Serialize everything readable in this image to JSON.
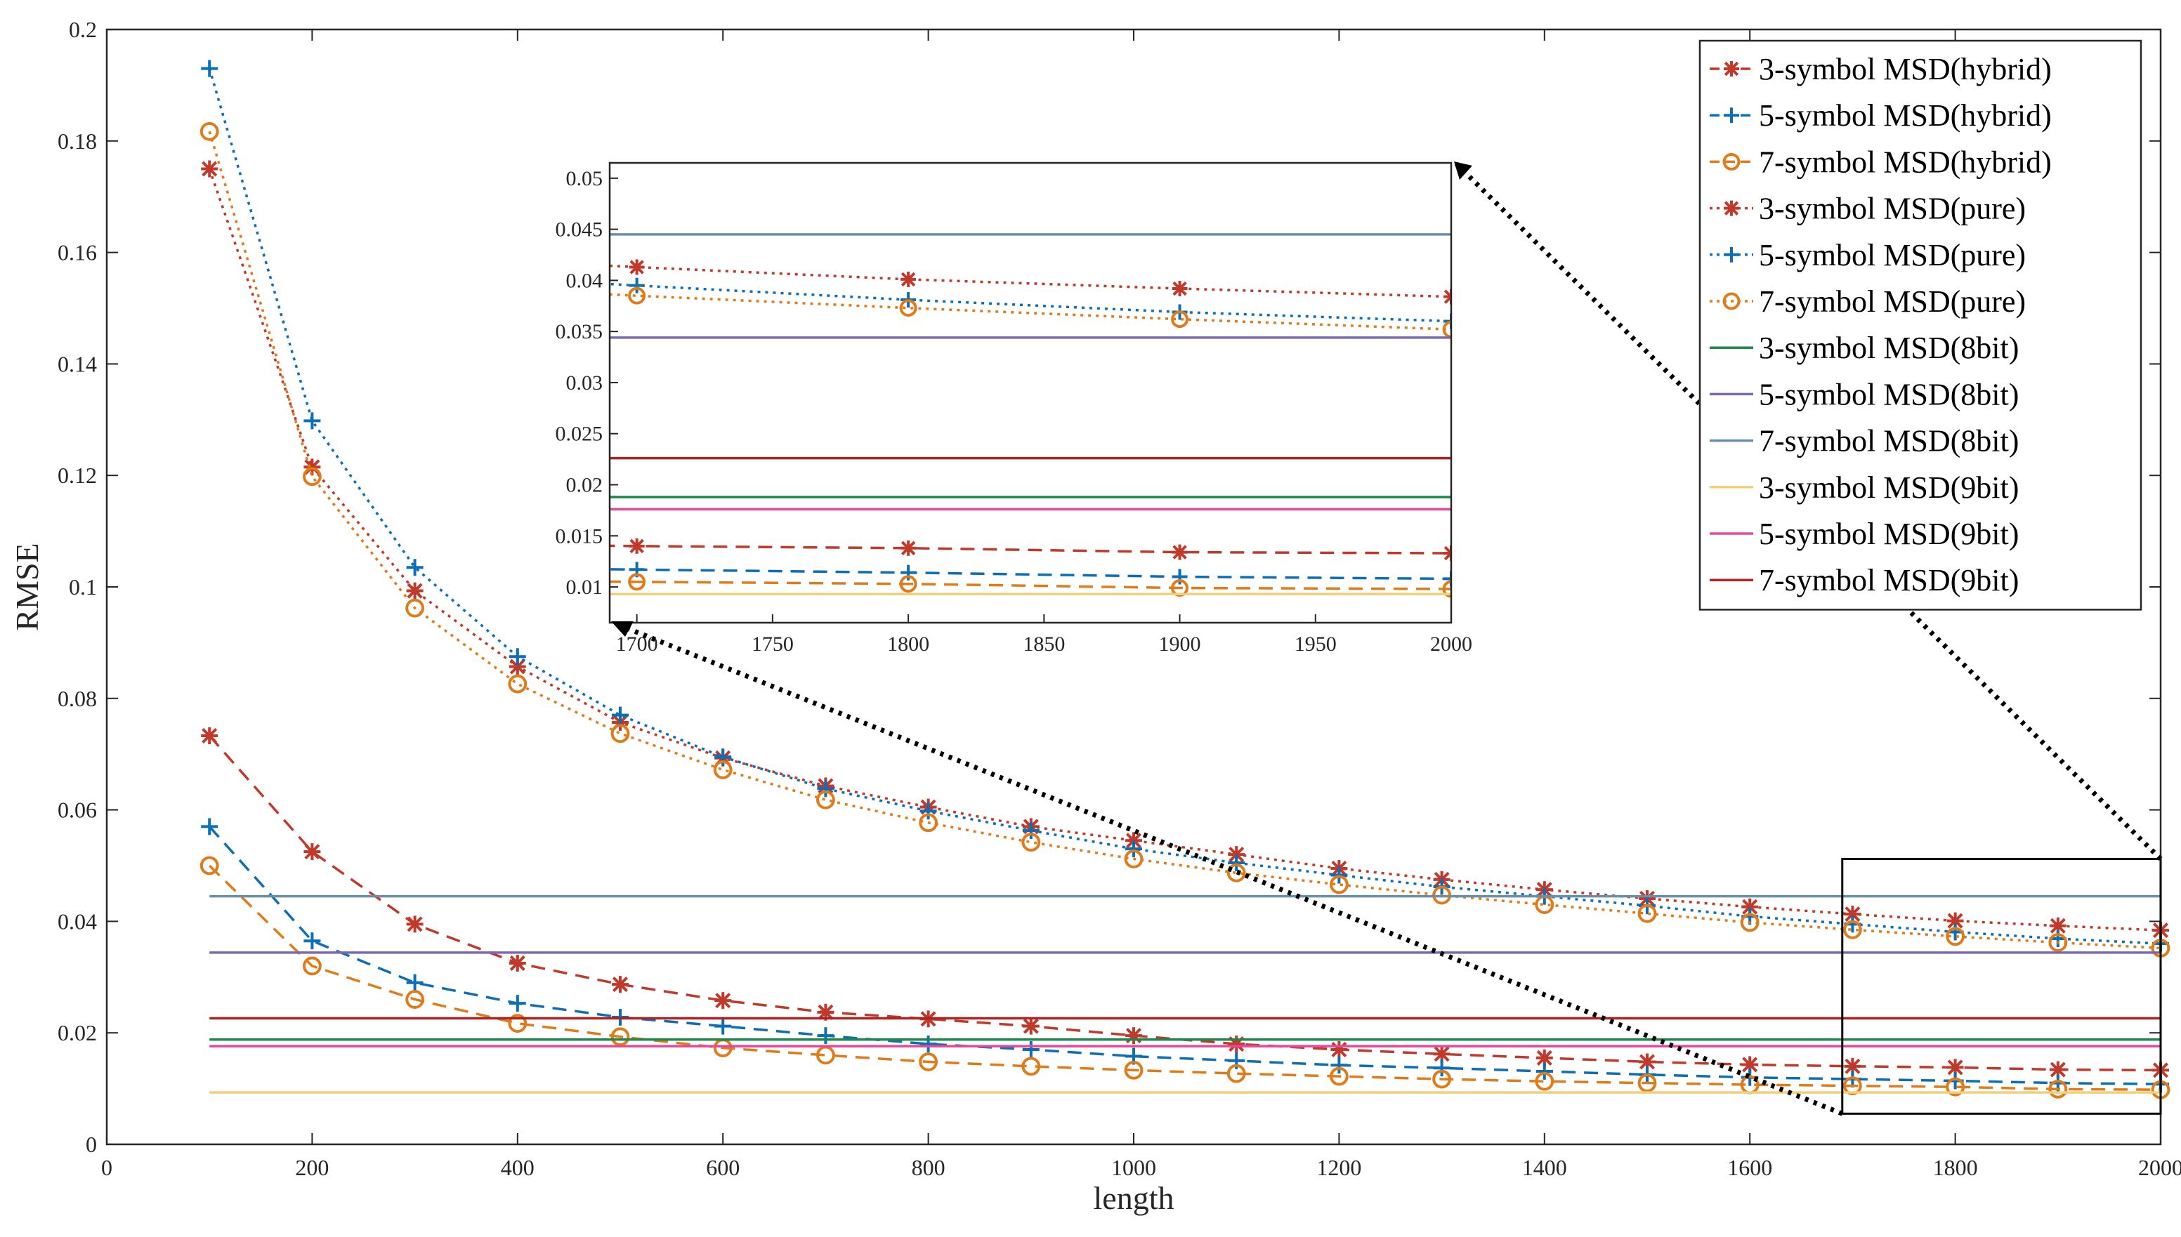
{
  "chart_data": {
    "type": "line",
    "title": "",
    "xlabel": "length",
    "ylabel": "RMSE",
    "xlim": [
      0,
      2000
    ],
    "ylim": [
      0,
      0.2
    ],
    "xticks": [
      "0",
      "200",
      "400",
      "600",
      "800",
      "1000",
      "1200",
      "1400",
      "1600",
      "1800",
      "2000"
    ],
    "yticks": [
      "0",
      "0.02",
      "0.04",
      "0.06",
      "0.08",
      "0.1",
      "0.12",
      "0.14",
      "0.16",
      "0.18",
      "0.2"
    ],
    "x": [
      100,
      200,
      300,
      400,
      500,
      600,
      700,
      800,
      900,
      1000,
      1100,
      1200,
      1300,
      1400,
      1500,
      1600,
      1700,
      1800,
      1900,
      2000
    ],
    "legend_position": "top-right",
    "series": [
      {
        "name": "3-symbol MSD(hybrid)",
        "color": "#c0392b",
        "dash": "dashed",
        "marker": "asterisk",
        "values": [
          0.0733,
          0.0525,
          0.0395,
          0.0325,
          0.0287,
          0.0258,
          0.0237,
          0.0225,
          0.0212,
          0.0195,
          0.018,
          0.017,
          0.0162,
          0.0155,
          0.0148,
          0.0143,
          0.014,
          0.0138,
          0.0134,
          0.0133
        ]
      },
      {
        "name": "5-symbol MSD(hybrid)",
        "color": "#0b6fb8",
        "dash": "dashed",
        "marker": "plus",
        "values": [
          0.057,
          0.0365,
          0.029,
          0.0253,
          0.0228,
          0.0212,
          0.0195,
          0.018,
          0.017,
          0.0158,
          0.015,
          0.0142,
          0.0137,
          0.0131,
          0.0125,
          0.012,
          0.0117,
          0.0114,
          0.011,
          0.0108
        ]
      },
      {
        "name": "7-symbol MSD(hybrid)",
        "color": "#e07b1a",
        "dash": "dashed",
        "marker": "circle",
        "values": [
          0.05,
          0.032,
          0.026,
          0.0217,
          0.0193,
          0.0173,
          0.016,
          0.0148,
          0.014,
          0.0133,
          0.0127,
          0.0122,
          0.0117,
          0.0113,
          0.011,
          0.0107,
          0.0105,
          0.0103,
          0.0099,
          0.0098
        ]
      },
      {
        "name": "3-symbol MSD(pure)",
        "color": "#c0392b",
        "dash": "dotted",
        "marker": "asterisk",
        "values": [
          0.175,
          0.1215,
          0.0993,
          0.0857,
          0.0757,
          0.0693,
          0.0643,
          0.0605,
          0.057,
          0.0545,
          0.052,
          0.0495,
          0.0475,
          0.0457,
          0.0441,
          0.0426,
          0.0413,
          0.0401,
          0.0392,
          0.0384
        ]
      },
      {
        "name": "5-symbol MSD(pure)",
        "color": "#0b6fb8",
        "dash": "dotted",
        "marker": "plus",
        "values": [
          0.193,
          0.1298,
          0.1035,
          0.0875,
          0.077,
          0.0695,
          0.0638,
          0.0598,
          0.0563,
          0.053,
          0.0505,
          0.0483,
          0.0462,
          0.0445,
          0.0428,
          0.0409,
          0.0395,
          0.0381,
          0.0369,
          0.036
        ]
      },
      {
        "name": "7-symbol MSD(pure)",
        "color": "#e07b1a",
        "dash": "dotted",
        "marker": "circle",
        "values": [
          0.1817,
          0.1198,
          0.0962,
          0.0826,
          0.0737,
          0.0672,
          0.0618,
          0.0577,
          0.0542,
          0.0512,
          0.0487,
          0.0466,
          0.0447,
          0.043,
          0.0414,
          0.0398,
          0.0385,
          0.0373,
          0.0362,
          0.0352
        ]
      },
      {
        "name": "3-symbol MSD(8bit)",
        "color": "#1a8a4a",
        "dash": "solid",
        "marker": "none",
        "constant": 0.0188
      },
      {
        "name": "5-symbol MSD(8bit)",
        "color": "#7b68b5",
        "dash": "solid",
        "marker": "none",
        "constant": 0.0344
      },
      {
        "name": "7-symbol MSD(8bit)",
        "color": "#6a8fa8",
        "dash": "solid",
        "marker": "none",
        "constant": 0.0445
      },
      {
        "name": "3-symbol MSD(9bit)",
        "color": "#f3cf7a",
        "dash": "solid",
        "marker": "none",
        "constant": 0.0093
      },
      {
        "name": "5-symbol MSD(9bit)",
        "color": "#e8489a",
        "dash": "solid",
        "marker": "none",
        "constant": 0.0176
      },
      {
        "name": "7-symbol MSD(9bit)",
        "color": "#b22222",
        "dash": "solid",
        "marker": "none",
        "constant": 0.0226
      }
    ],
    "inset": {
      "xlim": [
        1690,
        2000
      ],
      "ylim": [
        0.0065,
        0.0515
      ],
      "xticks": [
        "1700",
        "1750",
        "1800",
        "1850",
        "1900",
        "1950",
        "2000"
      ],
      "yticks": [
        "0.01",
        "0.015",
        "0.02",
        "0.025",
        "0.03",
        "0.035",
        "0.04",
        "0.045",
        "0.05"
      ],
      "zoom_region": {
        "x": [
          1690,
          2000
        ],
        "y": [
          0.0055,
          0.0512
        ]
      }
    }
  }
}
